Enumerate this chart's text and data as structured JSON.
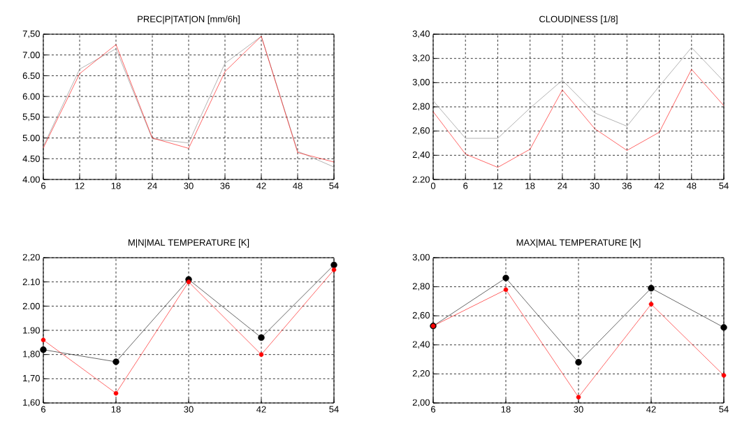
{
  "chart_data": [
    {
      "type": "line",
      "title": "PREC|P|TAT|ON [mm/6h]",
      "x": [
        6,
        12,
        18,
        24,
        30,
        36,
        42,
        48,
        54
      ],
      "xlim": [
        6,
        54
      ],
      "xticks": [
        6,
        12,
        18,
        24,
        30,
        36,
        42,
        48,
        54
      ],
      "ylim": [
        4.0,
        7.5
      ],
      "yticks": [
        {
          "value": 4.0,
          "label": "4.00"
        },
        {
          "value": 4.5,
          "label": "4.50"
        },
        {
          "value": 5.0,
          "label": "5.00"
        },
        {
          "value": 5.5,
          "label": "5,50"
        },
        {
          "value": 6.0,
          "label": "6.00"
        },
        {
          "value": 6.5,
          "label": "6.50"
        },
        {
          "value": 7.0,
          "label": "7.00"
        },
        {
          "value": 7.5,
          "label": "7,50"
        }
      ],
      "grid": true,
      "marker": "none",
      "series": [
        {
          "color": "#808080",
          "values": [
            4.8,
            6.66,
            7.15,
            4.98,
            4.88,
            6.8,
            7.45,
            4.68,
            4.3
          ]
        },
        {
          "color": "#ff0000",
          "values": [
            4.76,
            6.55,
            7.25,
            5.0,
            4.75,
            6.6,
            7.45,
            4.65,
            4.42
          ]
        }
      ]
    },
    {
      "type": "line",
      "title": "CLOUD|NESS [1/8]",
      "x": [
        0,
        6,
        12,
        18,
        24,
        30,
        36,
        42,
        48,
        54
      ],
      "xlim": [
        0,
        54
      ],
      "xticks": [
        0,
        6,
        12,
        18,
        24,
        30,
        36,
        42,
        48,
        54
      ],
      "ylim": [
        2.2,
        3.4
      ],
      "yticks": [
        {
          "value": 2.2,
          "label": "2.20"
        },
        {
          "value": 2.4,
          "label": "2,40"
        },
        {
          "value": 2.6,
          "label": "2,60"
        },
        {
          "value": 2.8,
          "label": "2,80"
        },
        {
          "value": 3.0,
          "label": "3,00"
        },
        {
          "value": 3.2,
          "label": "3,20"
        },
        {
          "value": 3.4,
          "label": "3,40"
        }
      ],
      "grid": true,
      "marker": "none",
      "series": [
        {
          "color": "#808080",
          "values": [
            2.85,
            2.54,
            2.54,
            2.79,
            3.02,
            2.75,
            2.64,
            2.97,
            3.29,
            3.01
          ]
        },
        {
          "color": "#ff0000",
          "values": [
            2.76,
            2.41,
            2.3,
            2.45,
            2.94,
            2.62,
            2.44,
            2.59,
            3.11,
            2.81
          ]
        }
      ]
    },
    {
      "type": "line",
      "title": "M|N|MAL TEMPERATURE [K]",
      "x": [
        6,
        18,
        30,
        42,
        54
      ],
      "xlim": [
        6,
        54
      ],
      "xticks": [
        6,
        18,
        30,
        42,
        54
      ],
      "ylim": [
        1.6,
        2.2
      ],
      "yticks": [
        {
          "value": 1.6,
          "label": "1,60"
        },
        {
          "value": 1.7,
          "label": "1,70"
        },
        {
          "value": 1.8,
          "label": "1,80"
        },
        {
          "value": 1.9,
          "label": "1.90"
        },
        {
          "value": 2.0,
          "label": "2.00"
        },
        {
          "value": 2.1,
          "label": "2.10"
        },
        {
          "value": 2.2,
          "label": "2,20"
        }
      ],
      "grid": true,
      "marker": "circle",
      "series": [
        {
          "color": "#000000",
          "values": [
            1.82,
            1.77,
            2.11,
            1.87,
            2.17
          ]
        },
        {
          "color": "#ff0000",
          "values": [
            1.86,
            1.64,
            2.1,
            1.8,
            2.15
          ]
        }
      ]
    },
    {
      "type": "line",
      "title": "MAX|MAL TEMPERATURE [K]",
      "x": [
        6,
        18,
        30,
        42,
        54
      ],
      "xlim": [
        6,
        54
      ],
      "xticks": [
        6,
        18,
        30,
        42,
        54
      ],
      "ylim": [
        2.0,
        3.0
      ],
      "yticks": [
        {
          "value": 2.0,
          "label": "2,00"
        },
        {
          "value": 2.2,
          "label": "2,20"
        },
        {
          "value": 2.4,
          "label": "2,40"
        },
        {
          "value": 2.6,
          "label": "2,60"
        },
        {
          "value": 2.8,
          "label": "2,80"
        },
        {
          "value": 3.0,
          "label": "3,00"
        }
      ],
      "grid": true,
      "marker": "circle",
      "series": [
        {
          "color": "#000000",
          "values": [
            2.53,
            2.86,
            2.28,
            2.79,
            2.52
          ]
        },
        {
          "color": "#ff0000",
          "values": [
            2.53,
            2.78,
            2.04,
            2.68,
            2.19
          ]
        }
      ]
    }
  ]
}
